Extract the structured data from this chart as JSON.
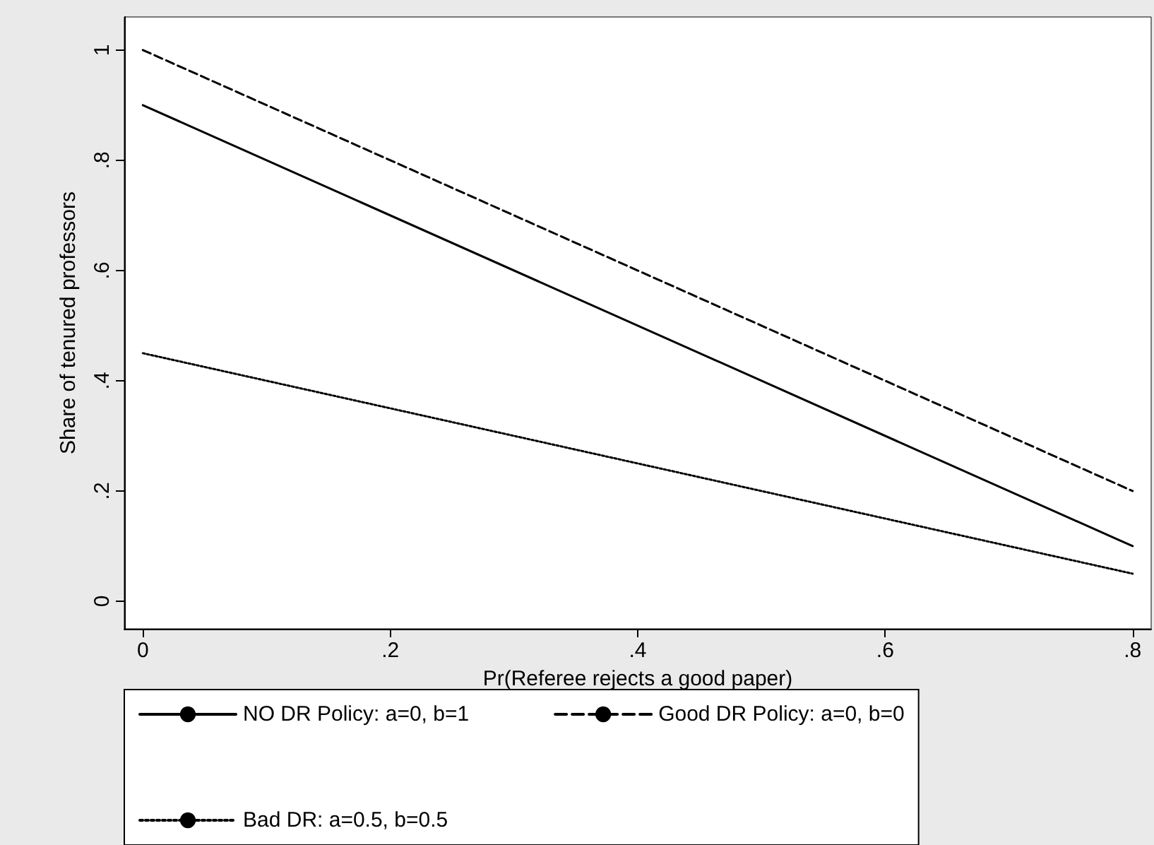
{
  "chart_data": {
    "type": "line",
    "xlabel": "Pr(Referee rejects a good paper)",
    "ylabel": "Share of tenured professors",
    "x": [
      0,
      0.8
    ],
    "series": [
      {
        "name": "NO DR Policy: a=0, b=1",
        "color": "#000000",
        "line_style": "solid",
        "values": [
          0.9,
          0.1
        ]
      },
      {
        "name": "Good DR Policy: a=0, b=0",
        "color": "#000000",
        "line_style": "dashed",
        "values": [
          1,
          0.2
        ]
      },
      {
        "name": "Bad DR: a=0.5, b=0.5",
        "color": "#000000",
        "line_style": "dotted",
        "values": [
          0.45,
          0.05
        ]
      }
    ],
    "xlim": [
      -0.015,
      0.815
    ],
    "ylim": [
      -0.05,
      1.06
    ],
    "xticks": [
      0,
      {
        "value": 0.2,
        "label": ".2"
      },
      {
        "value": 0.4,
        "label": ".4"
      },
      {
        "value": 0.6,
        "label": ".6"
      },
      {
        "value": 0.8,
        "label": ".8"
      }
    ],
    "yticks": [
      0,
      {
        "value": 0.2,
        "label": ".2"
      },
      {
        "value": 0.4,
        "label": ".4"
      },
      {
        "value": 0.6,
        "label": ".6"
      },
      {
        "value": 0.8,
        "label": ".8"
      },
      {
        "value": 1,
        "label": "1"
      }
    ],
    "grid": false,
    "legend": "bottom",
    "marker": "none"
  }
}
